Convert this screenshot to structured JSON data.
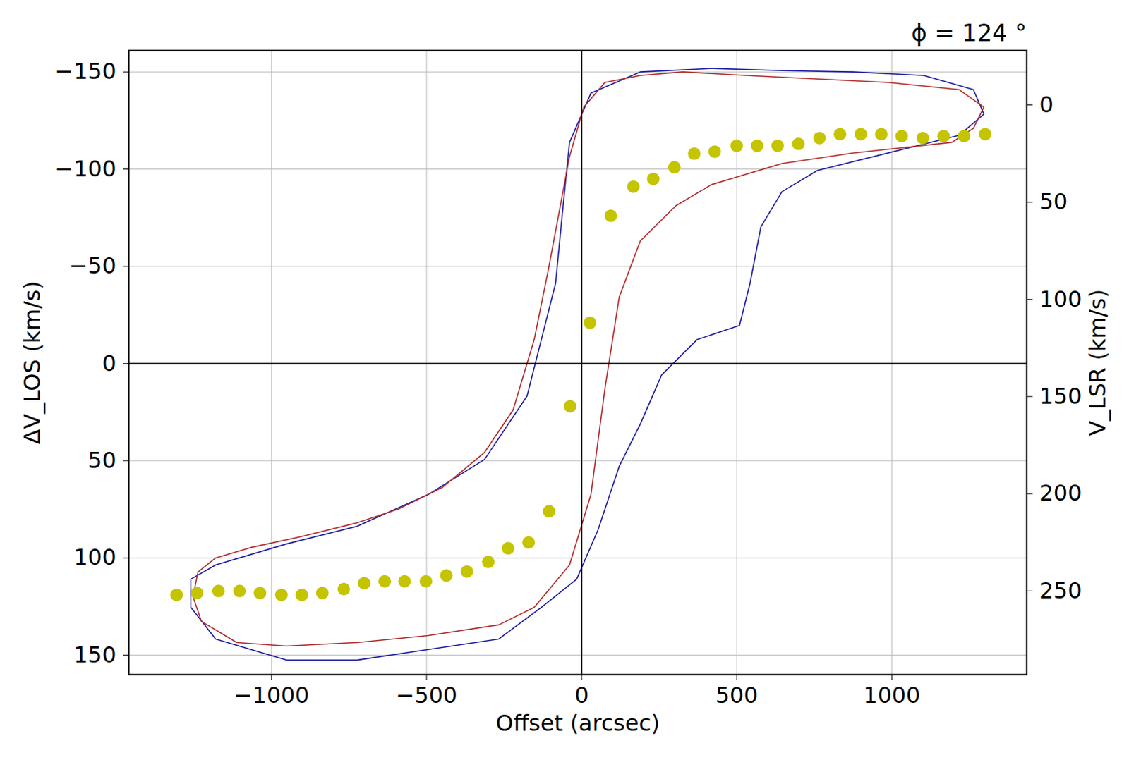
{
  "chart_data": {
    "type": "scatter",
    "title": "ϕ = 124 °",
    "x_label": "Offset (arcsec)",
    "y_label": "ΔV_LOS (km/s)",
    "y2_label": "V_LSR (km/s)",
    "xlim": [
      -1460,
      1435
    ],
    "xticks": [
      -1000,
      -500,
      0,
      500,
      1000
    ],
    "ylim": [
      160,
      -161
    ],
    "yticks": [
      -150,
      -100,
      -50,
      0,
      50,
      100,
      150
    ],
    "y2lim": [
      293,
      -28
    ],
    "y2ticks": [
      0,
      50,
      100,
      150,
      200,
      250
    ],
    "grid": true,
    "rules": {
      "x": [
        0
      ],
      "y": [
        0
      ]
    },
    "series": [
      {
        "type": "line",
        "color": "#1c1ca0",
        "x": [
          -1260,
          -1180,
          -952,
          -724,
          -495,
          -313,
          -176,
          -130,
          -84,
          -62,
          -39,
          30,
          189,
          418,
          646,
          874,
          1103,
          1263,
          1297,
          1217,
          760,
          646,
          578,
          543,
          509,
          372,
          258,
          189,
          121,
          53,
          -16,
          -130,
          -267,
          -495,
          -724,
          -952,
          -1180,
          -1260,
          -1260
        ],
        "values": [
          110.9,
          103.6,
          92.8,
          83.7,
          67.4,
          49.3,
          16.7,
          -12.3,
          -41.3,
          -77.5,
          -113.8,
          -139.1,
          -150,
          -151.8,
          -150.7,
          -150,
          -148.2,
          -140.9,
          -128.3,
          -117.4,
          -99.3,
          -88.4,
          -70.3,
          -41.3,
          -19.6,
          -12.3,
          5.8,
          31.2,
          52.9,
          85.5,
          110.9,
          125.4,
          141.7,
          147.1,
          152.5,
          152.5,
          141.7,
          125.4,
          110.9
        ]
      },
      {
        "type": "line",
        "color": "#b02a2a",
        "x": [
          -1237,
          -1180,
          -1066,
          -906,
          -724,
          -587,
          -450,
          -313,
          -221,
          -153,
          -107,
          -73,
          -39,
          7,
          75,
          189,
          326,
          532,
          760,
          989,
          1217,
          1297,
          1263,
          1194,
          874,
          646,
          418,
          304,
          189,
          121,
          75,
          30,
          -39,
          -153,
          -267,
          -495,
          -724,
          -952,
          -1112,
          -1226,
          -1253,
          -1237
        ],
        "values": [
          107.2,
          100,
          94.6,
          89.1,
          81.9,
          74.6,
          63.8,
          45.7,
          23.9,
          -12.3,
          -48.6,
          -77.5,
          -106.5,
          -131.9,
          -144.6,
          -148.2,
          -150,
          -148.2,
          -146.4,
          -144.6,
          -140.9,
          -131.9,
          -121,
          -113.8,
          -108.3,
          -102.9,
          -92,
          -81.2,
          -63,
          -34.1,
          13,
          67.4,
          103.6,
          125.4,
          134.4,
          139.9,
          143.5,
          145.3,
          143.5,
          132.6,
          119.9,
          107.2
        ]
      },
      {
        "type": "scatter",
        "color": "#c4c400",
        "marker": "circle",
        "x": [
          -1306,
          -1240,
          -1171,
          -1103,
          -1037,
          -968,
          -902,
          -836,
          -767,
          -701,
          -635,
          -571,
          -502,
          -436,
          -370,
          -301,
          -237,
          -171,
          -105,
          -37,
          27,
          94,
          167,
          231,
          299,
          363,
          429,
          500,
          566,
          632,
          699,
          767,
          833,
          900,
          966,
          1032,
          1100,
          1167,
          1233,
          1301
        ],
        "values": [
          119,
          118,
          117,
          117,
          118,
          119,
          119,
          118,
          116,
          113,
          112,
          112,
          112,
          109,
          107,
          102,
          95,
          92,
          76,
          22,
          -21,
          -76,
          -91,
          -95,
          -101,
          -108,
          -109,
          -112,
          -112,
          -112,
          -113,
          -116,
          -118,
          -118,
          -118,
          -117,
          -116,
          -117,
          -117,
          -118
        ]
      }
    ]
  }
}
